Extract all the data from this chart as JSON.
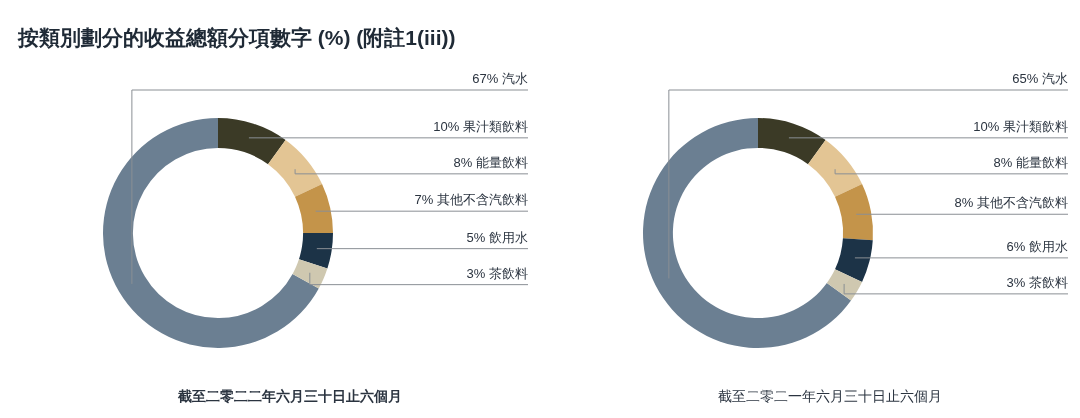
{
  "chart_data": [
    {
      "type": "donut",
      "title": "按類別劃分的收益總額分項數字 (%) (附註1(iii))",
      "subtitle": "截至二零二二年六月三十日止六個月",
      "categories": [
        "汽水",
        "果汁類飲料",
        "能量飲料",
        "其他不含汽飲料",
        "飲用水",
        "茶飲料"
      ],
      "values": [
        67,
        10,
        8,
        7,
        5,
        3
      ],
      "value_labels": [
        "67%",
        "10%",
        "8%",
        "7%",
        "5%",
        "3%"
      ],
      "colors": [
        "#6b7f92",
        "#3b3a26",
        "#e3c594",
        "#c4944a",
        "#1c3347",
        "#cfc8b0"
      ],
      "legend": false
    },
    {
      "type": "donut",
      "subtitle": "截至二零二一年六月三十日止六個月",
      "categories": [
        "汽水",
        "果汁類飲料",
        "能量飲料",
        "其他不含汽飲料",
        "飲用水",
        "茶飲料"
      ],
      "values": [
        65,
        10,
        8,
        8,
        6,
        3
      ],
      "value_labels": [
        "65%",
        "10%",
        "8%",
        "8%",
        "6%",
        "3%"
      ],
      "colors": [
        "#6b7f92",
        "#3b3a26",
        "#e3c594",
        "#c4944a",
        "#1c3347",
        "#cfc8b0"
      ],
      "legend": false
    }
  ]
}
